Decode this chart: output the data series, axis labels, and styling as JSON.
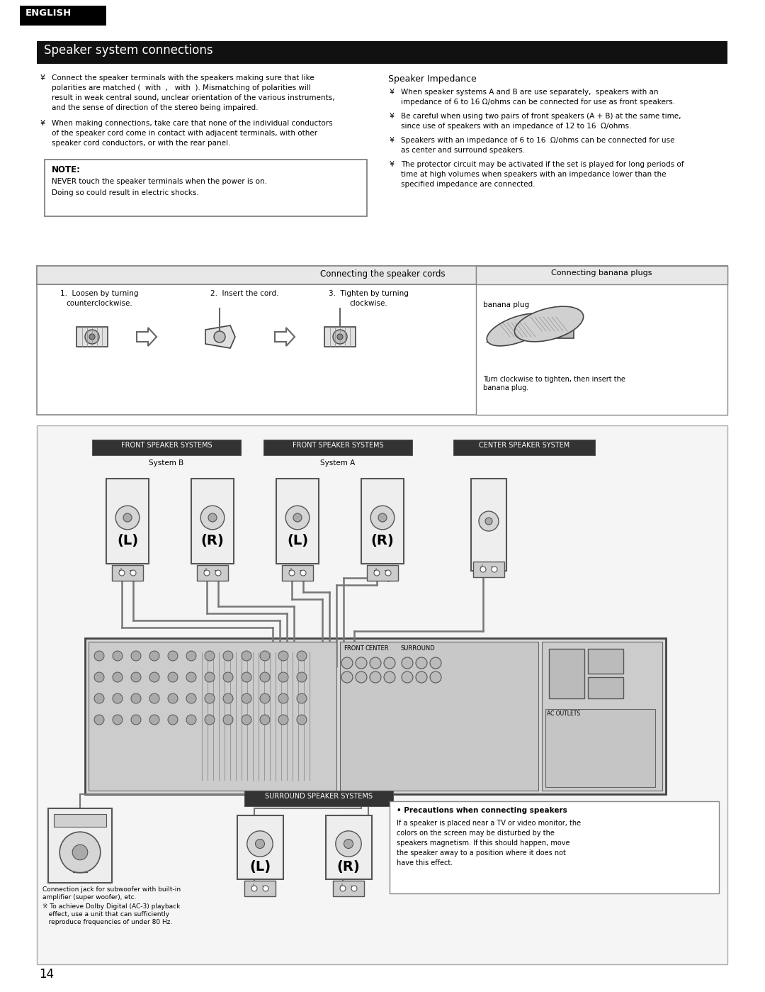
{
  "bg_color": "#ffffff",
  "english_text": "ENGLISH",
  "title_text": "Speaker system connections",
  "bullet": "¥",
  "note_title": "NOTE:",
  "note_line1": "NEVER touch the speaker terminals when the power is on.",
  "note_line2": "Doing so could result in electric shocks.",
  "speaker_impedance_title": "Speaker Impedance",
  "connecting_cords_title": "Connecting the speaker cords",
  "banana_plugs_title": "Connecting banana plugs",
  "banana_plug_label": "banana plug",
  "banana_plug_caption": "Turn clockwise to tighten, then insert the\nbanana plug.",
  "cord_step1a": "1.  Loosen by turning",
  "cord_step1b": "counterclockwise.",
  "cord_step2": "2.  Insert the cord.",
  "cord_step3a": "3.  Tighten by turning",
  "cord_step3b": "clockwise.",
  "lbl_front_b": "FRONT SPEAKER SYSTEMS",
  "lbl_sys_b": "System B",
  "lbl_front_a": "FRONT SPEAKER SYSTEMS",
  "lbl_sys_a": "System A",
  "lbl_center": "CENTER SPEAKER SYSTEM",
  "lbl_surround": "SURROUND SPEAKER SYSTEMS",
  "lbl_L": "(L)",
  "lbl_R": "(R)",
  "subwoofer_caption1": "Connection jack for subwoofer with built-in",
  "subwoofer_caption2": "amplifier (super woofer), etc.",
  "subwoofer_note1": "※ To achieve Dolby Digital (AC-3) playback",
  "subwoofer_note2": "   effect, use a unit that can sufficiently",
  "subwoofer_note3": "   reproduce frequencies of under 80 Hz.",
  "precautions_title": "• Precautions when connecting speakers",
  "precautions1": "If a speaker is placed near a TV or video monitor, the",
  "precautions2": "colors on the screen may be disturbed by the",
  "precautions3": "speakers magnetism. If this should happen, move",
  "precautions4": "the speaker away to a position where it does not",
  "precautions5": "have this effect.",
  "page_number": "14",
  "left_bullet1_lines": [
    "Connect the speaker terminals with the speakers making sure that like",
    "polarities are matched (  with  ,   with  ). Mismatching of polarities will",
    "result in weak central sound, unclear orientation of the various instruments,",
    "and the sense of direction of the stereo being impaired."
  ],
  "left_bullet2_lines": [
    "When making connections, take care that none of the individual conductors",
    "of the speaker cord come in contact with adjacent terminals, with other",
    "speaker cord conductors, or with the rear panel."
  ],
  "right_bullet1_lines": [
    "When speaker systems A and B are use separately,  speakers with an",
    "impedance of 6 to 16 Ω/ohms can be connected for use as front speakers."
  ],
  "right_bullet2_lines": [
    "Be careful when using two pairs of front speakers (A + B) at the same time,",
    "since use of speakers with an impedance of 12 to 16  Ω/ohms."
  ],
  "right_bullet3_lines": [
    "Speakers with an impedance of 6 to 16  Ω/ohms can be connected for use",
    "as center and surround speakers."
  ],
  "right_bullet4_lines": [
    "The protector circuit may be activated if the set is played for long periods of",
    "time at high volumes when speakers with an impedance lower than the",
    "specified impedance are connected."
  ]
}
